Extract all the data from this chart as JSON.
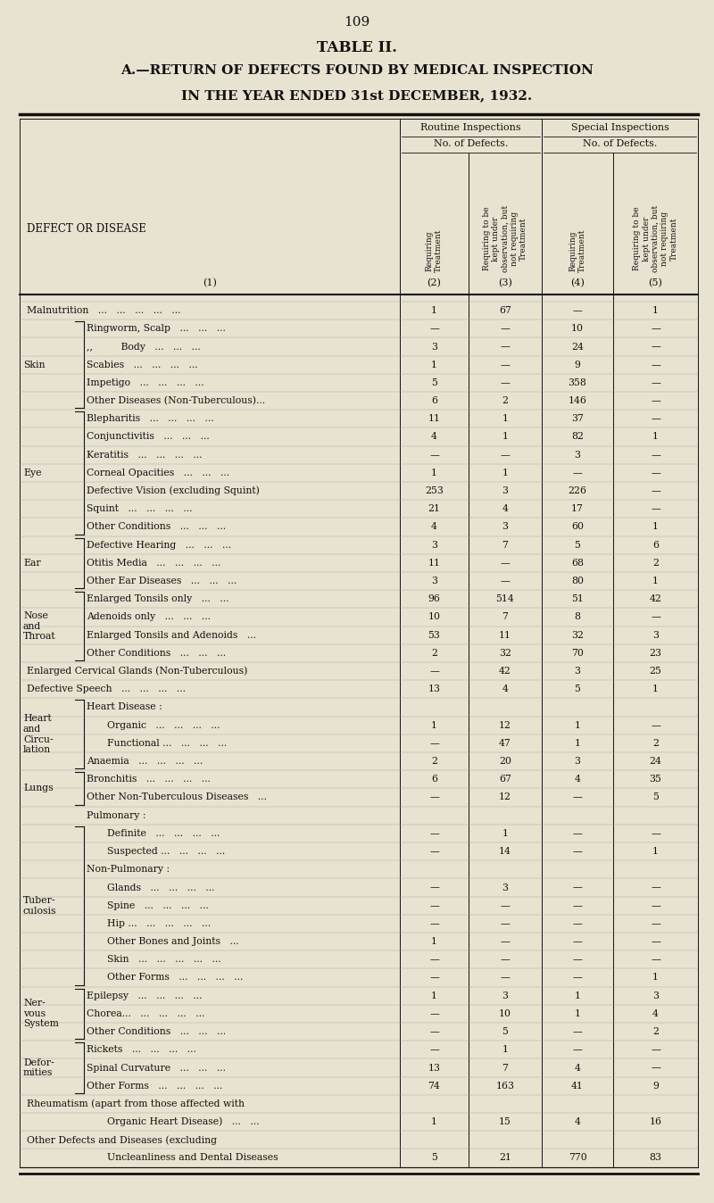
{
  "page_number": "109",
  "title1": "TABLE II.",
  "title2": "A.—RETURN OF DEFECTS FOUND BY MEDICAL INSPECTION",
  "title3": "IN THE YEAR ENDED 31st DECEMBER, 1932.",
  "bg_color": "#e8e2d0",
  "text_color": "#111111",
  "line_color": "#111111",
  "rows": [
    {
      "label": "Malnutrition   ...   ...   ...   ...   ...",
      "cat": "",
      "bracket": false,
      "indent": 0,
      "c2": "1",
      "c3": "67",
      "c4": "—",
      "c5": "1"
    },
    {
      "label": "Ringworm, Scalp   ...   ...   ...",
      "cat": "Skin",
      "bracket": true,
      "indent": 1,
      "c2": "—",
      "c3": "—",
      "c4": "10",
      "c5": "—"
    },
    {
      "label": ",,         Body   ...   ...   ...",
      "cat": "",
      "bracket": false,
      "indent": 1,
      "c2": "3",
      "c3": "—",
      "c4": "24",
      "c5": "—"
    },
    {
      "label": "Scabies   ...   ...   ...   ...",
      "cat": "",
      "bracket": false,
      "indent": 1,
      "c2": "1",
      "c3": "—",
      "c4": "9",
      "c5": "—"
    },
    {
      "label": "Impetigo   ...   ...   ...   ...",
      "cat": "",
      "bracket": false,
      "indent": 1,
      "c2": "5",
      "c3": "—",
      "c4": "358",
      "c5": "—"
    },
    {
      "label": "Other Diseases (Non-Tuberculous)...",
      "cat": "",
      "bracket": false,
      "indent": 1,
      "c2": "6",
      "c3": "2",
      "c4": "146",
      "c5": "—"
    },
    {
      "label": "Blepharitis   ...   ...   ...   ...",
      "cat": "Eye",
      "bracket": true,
      "indent": 1,
      "c2": "11",
      "c3": "1",
      "c4": "37",
      "c5": "—"
    },
    {
      "label": "Conjunctivitis   ...   ...   ...",
      "cat": "",
      "bracket": false,
      "indent": 1,
      "c2": "4",
      "c3": "1",
      "c4": "82",
      "c5": "1"
    },
    {
      "label": "Keratitis   ...   ...   ...   ...",
      "cat": "",
      "bracket": false,
      "indent": 1,
      "c2": "—",
      "c3": "—",
      "c4": "3",
      "c5": "—"
    },
    {
      "label": "Corneal Opacities   ...   ...   ...",
      "cat": "",
      "bracket": false,
      "indent": 1,
      "c2": "1",
      "c3": "1",
      "c4": "—",
      "c5": "—"
    },
    {
      "label": "Defective Vision (excluding Squint)",
      "cat": "",
      "bracket": false,
      "indent": 1,
      "c2": "253",
      "c3": "3",
      "c4": "226",
      "c5": "—"
    },
    {
      "label": "Squint   ...   ...   ...   ...",
      "cat": "",
      "bracket": false,
      "indent": 1,
      "c2": "21",
      "c3": "4",
      "c4": "17",
      "c5": "—"
    },
    {
      "label": "Other Conditions   ...   ...   ...",
      "cat": "",
      "bracket": false,
      "indent": 1,
      "c2": "4",
      "c3": "3",
      "c4": "60",
      "c5": "1"
    },
    {
      "label": "Defective Hearing   ...   ...   ...",
      "cat": "Ear",
      "bracket": true,
      "indent": 1,
      "c2": "3",
      "c3": "7",
      "c4": "5",
      "c5": "6"
    },
    {
      "label": "Otitis Media   ...   ...   ...   ...",
      "cat": "",
      "bracket": false,
      "indent": 1,
      "c2": "11",
      "c3": "—",
      "c4": "68",
      "c5": "2"
    },
    {
      "label": "Other Ear Diseases   ...   ...   ...",
      "cat": "",
      "bracket": false,
      "indent": 1,
      "c2": "3",
      "c3": "—",
      "c4": "80",
      "c5": "1"
    },
    {
      "label": "Enlarged Tonsils only   ...   ...",
      "cat": "Nose\nand\nThroat",
      "bracket": true,
      "indent": 1,
      "c2": "96",
      "c3": "514",
      "c4": "51",
      "c5": "42"
    },
    {
      "label": "Adenoids only   ...   ...   ...",
      "cat": "",
      "bracket": false,
      "indent": 1,
      "c2": "10",
      "c3": "7",
      "c4": "8",
      "c5": "—"
    },
    {
      "label": "Enlarged Tonsils and Adenoids   ...",
      "cat": "",
      "bracket": false,
      "indent": 1,
      "c2": "53",
      "c3": "11",
      "c4": "32",
      "c5": "3"
    },
    {
      "label": "Other Conditions   ...   ...   ...",
      "cat": "",
      "bracket": false,
      "indent": 1,
      "c2": "2",
      "c3": "32",
      "c4": "70",
      "c5": "23"
    },
    {
      "label": "Enlarged Cervical Glands (Non-Tuberculous)",
      "cat": "",
      "bracket": false,
      "indent": 0,
      "c2": "—",
      "c3": "42",
      "c4": "3",
      "c5": "25"
    },
    {
      "label": "Defective Speech   ...   ...   ...   ...",
      "cat": "",
      "bracket": false,
      "indent": 0,
      "c2": "13",
      "c3": "4",
      "c4": "5",
      "c5": "1"
    },
    {
      "label": "Heart Disease :",
      "cat": "Heart\nand\nCircu-\nlation",
      "bracket": true,
      "indent": 1,
      "c2": "",
      "c3": "",
      "c4": "",
      "c5": ""
    },
    {
      "label": "Organic   ...   ...   ...   ...",
      "cat": "",
      "bracket": false,
      "indent": 2,
      "c2": "1",
      "c3": "12",
      "c4": "1",
      "c5": "—"
    },
    {
      "label": "Functional ...   ...   ...   ...",
      "cat": "",
      "bracket": false,
      "indent": 2,
      "c2": "—",
      "c3": "47",
      "c4": "1",
      "c5": "2"
    },
    {
      "label": "Anaemia   ...   ...   ...   ...",
      "cat": "",
      "bracket": false,
      "indent": 1,
      "c2": "2",
      "c3": "20",
      "c4": "3",
      "c5": "24"
    },
    {
      "label": "Bronchitis   ...   ...   ...   ...",
      "cat": "Lungs",
      "bracket": true,
      "indent": 1,
      "c2": "6",
      "c3": "67",
      "c4": "4",
      "c5": "35"
    },
    {
      "label": "Other Non-Tuberculous Diseases   ...",
      "cat": "",
      "bracket": false,
      "indent": 1,
      "c2": "—",
      "c3": "12",
      "c4": "—",
      "c5": "5"
    },
    {
      "label": "Pulmonary :",
      "cat": "",
      "bracket": false,
      "indent": 1,
      "c2": "",
      "c3": "",
      "c4": "",
      "c5": ""
    },
    {
      "label": "Definite   ...   ...   ...   ...",
      "cat": "Tuber-\nculosis",
      "bracket": true,
      "indent": 2,
      "c2": "—",
      "c3": "1",
      "c4": "—",
      "c5": "—"
    },
    {
      "label": "Suspected ...   ...   ...   ...",
      "cat": "",
      "bracket": false,
      "indent": 2,
      "c2": "—",
      "c3": "14",
      "c4": "—",
      "c5": "1"
    },
    {
      "label": "Non-Pulmonary :",
      "cat": "",
      "bracket": false,
      "indent": 1,
      "c2": "",
      "c3": "",
      "c4": "",
      "c5": ""
    },
    {
      "label": "Glands   ...   ...   ...   ...",
      "cat": "",
      "bracket": false,
      "indent": 2,
      "c2": "—",
      "c3": "3",
      "c4": "—",
      "c5": "—"
    },
    {
      "label": "Spine   ...   ...   ...   ...",
      "cat": "",
      "bracket": false,
      "indent": 2,
      "c2": "—",
      "c3": "—",
      "c4": "—",
      "c5": "—"
    },
    {
      "label": "Hip ...   ...   ...   ...   ...",
      "cat": "",
      "bracket": false,
      "indent": 2,
      "c2": "—",
      "c3": "—",
      "c4": "—",
      "c5": "—"
    },
    {
      "label": "Other Bones and Joints   ...",
      "cat": "",
      "bracket": false,
      "indent": 2,
      "c2": "1",
      "c3": "—",
      "c4": "—",
      "c5": "—"
    },
    {
      "label": "Skin   ...   ...   ...   ...   ...",
      "cat": "",
      "bracket": false,
      "indent": 2,
      "c2": "—",
      "c3": "—",
      "c4": "—",
      "c5": "—"
    },
    {
      "label": "Other Forms   ...   ...   ...   ...",
      "cat": "",
      "bracket": false,
      "indent": 2,
      "c2": "—",
      "c3": "—",
      "c4": "—",
      "c5": "1"
    },
    {
      "label": "Epilepsy   ...   ...   ...   ...",
      "cat": "Ner-\nvous\nSystem",
      "bracket": true,
      "indent": 1,
      "c2": "1",
      "c3": "3",
      "c4": "1",
      "c5": "3"
    },
    {
      "label": "Chorea...   ...   ...   ...   ...",
      "cat": "",
      "bracket": false,
      "indent": 1,
      "c2": "—",
      "c3": "10",
      "c4": "1",
      "c5": "4"
    },
    {
      "label": "Other Conditions   ...   ...   ...",
      "cat": "",
      "bracket": false,
      "indent": 1,
      "c2": "—",
      "c3": "5",
      "c4": "—",
      "c5": "2"
    },
    {
      "label": "Rickets   ...   ...   ...   ...",
      "cat": "Defor-\nmities",
      "bracket": true,
      "indent": 1,
      "c2": "—",
      "c3": "1",
      "c4": "—",
      "c5": "—"
    },
    {
      "label": "Spinal Curvature   ...   ...   ...",
      "cat": "",
      "bracket": false,
      "indent": 1,
      "c2": "13",
      "c3": "7",
      "c4": "4",
      "c5": "—"
    },
    {
      "label": "Other Forms   ...   ...   ...   ...",
      "cat": "",
      "bracket": false,
      "indent": 1,
      "c2": "74",
      "c3": "163",
      "c4": "41",
      "c5": "9"
    },
    {
      "label": "Rheumatism (apart from those affected with",
      "cat": "",
      "bracket": false,
      "indent": 0,
      "c2": "",
      "c3": "",
      "c4": "",
      "c5": ""
    },
    {
      "label": "Organic Heart Disease)   ...   ...",
      "cat": "",
      "bracket": false,
      "indent": 2,
      "c2": "1",
      "c3": "15",
      "c4": "4",
      "c5": "16"
    },
    {
      "label": "Other Defects and Diseases (excluding",
      "cat": "",
      "bracket": false,
      "indent": 0,
      "c2": "",
      "c3": "",
      "c4": "",
      "c5": ""
    },
    {
      "label": "Uncleanliness and Dental Diseases",
      "cat": "",
      "bracket": false,
      "indent": 2,
      "c2": "5",
      "c3": "21",
      "c4": "770",
      "c5": "83"
    }
  ],
  "cat_groups": [
    {
      "cat": "Skin",
      "start": 1,
      "end": 5
    },
    {
      "cat": "Eye",
      "start": 6,
      "end": 12
    },
    {
      "cat": "Ear",
      "start": 13,
      "end": 15
    },
    {
      "cat": "Nose\nand\nThroat",
      "start": 16,
      "end": 19
    },
    {
      "cat": "Heart\nand\nCircu-\nlation",
      "start": 22,
      "end": 25
    },
    {
      "cat": "Lungs",
      "start": 26,
      "end": 27
    },
    {
      "cat": "Tuber-\nculosis",
      "start": 29,
      "end": 37
    },
    {
      "cat": "Ner-\nvous\nSystem",
      "start": 38,
      "end": 40
    },
    {
      "cat": "Defor-\nmities",
      "start": 41,
      "end": 43
    }
  ]
}
